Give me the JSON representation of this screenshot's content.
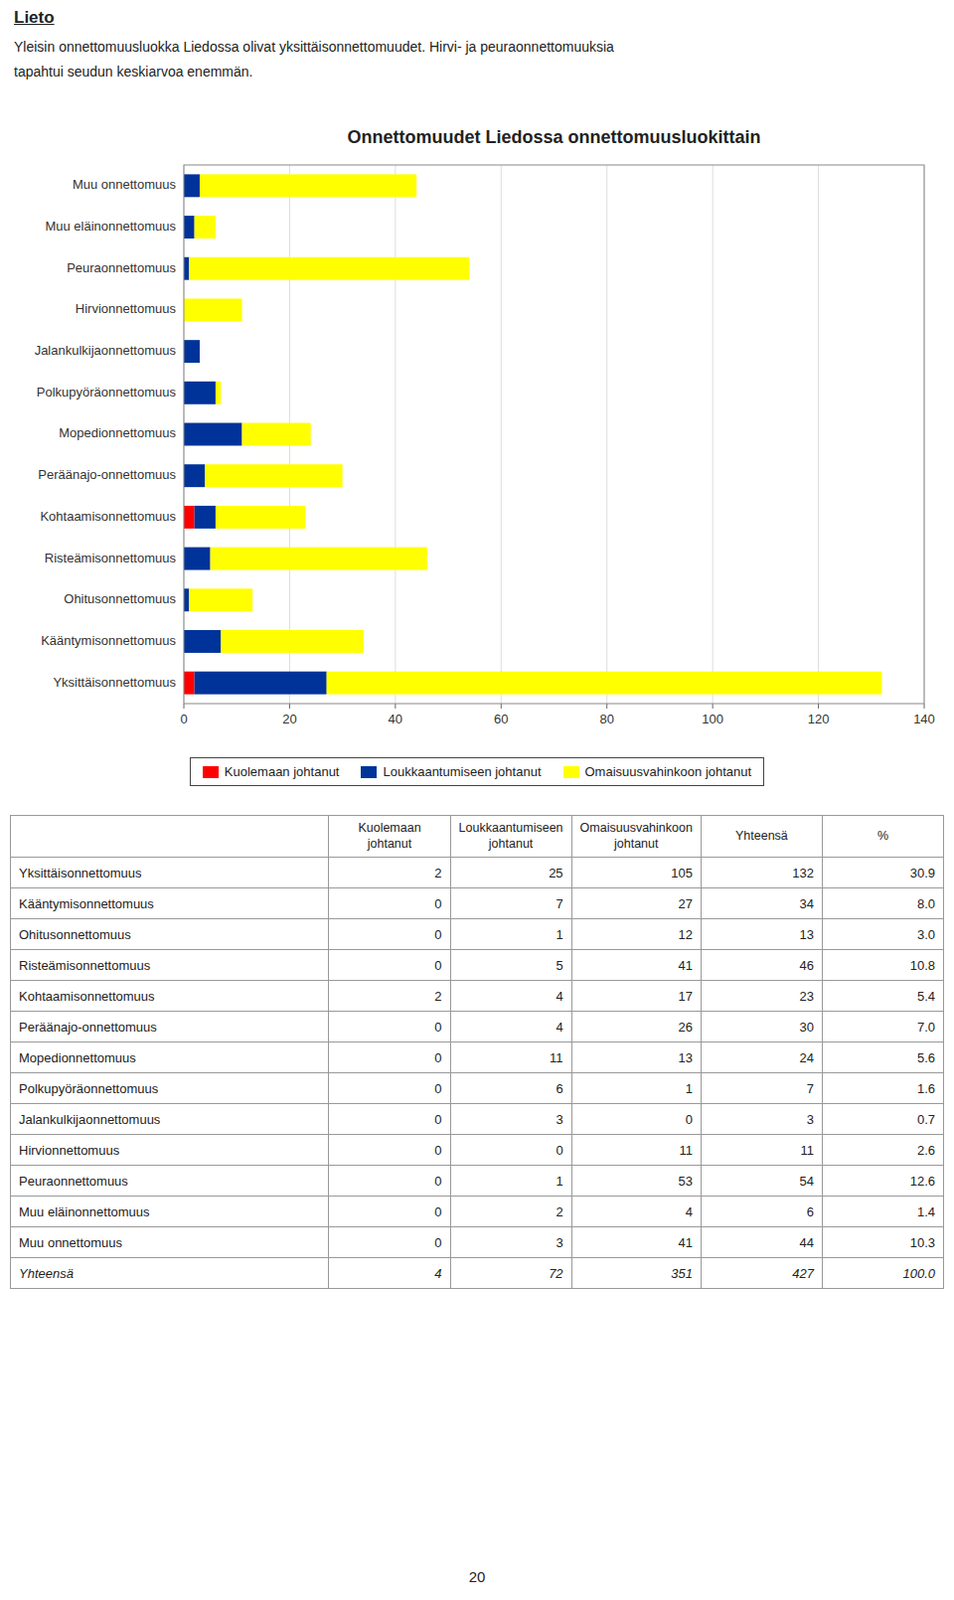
{
  "chart_data": {
    "type": "bar",
    "orientation": "horizontal",
    "stacked": true,
    "title": "Onnettomuudet Liedossa onnettomuusluokittain",
    "categories": [
      "Yksittäisonnettomuus",
      "Kääntymisonnettomuus",
      "Ohitusonnettomuus",
      "Risteämisonnettomuus",
      "Kohtaamisonnettomuus",
      "Peräänajo-onnettomuus",
      "Mopedionnettomuus",
      "Polkupyöräonnettomuus",
      "Jalankulkijaonnettomuus",
      "Hirvionnettomuus",
      "Peuraonnettomuus",
      "Muu eläinonnettomuus",
      "Muu onnettomuus"
    ],
    "series": [
      {
        "name": "Kuolemaan johtanut",
        "color": "#FF0000",
        "values": [
          2,
          0,
          0,
          0,
          2,
          0,
          0,
          0,
          0,
          0,
          0,
          0,
          0
        ]
      },
      {
        "name": "Loukkaantumiseen johtanut",
        "color": "#003399",
        "values": [
          25,
          7,
          1,
          5,
          4,
          4,
          11,
          6,
          3,
          0,
          1,
          2,
          3
        ]
      },
      {
        "name": "Omaisuusvahinkoon johtanut",
        "color": "#FFFF00",
        "values": [
          105,
          27,
          12,
          41,
          17,
          26,
          13,
          1,
          0,
          11,
          53,
          4,
          41
        ]
      }
    ],
    "xlim": [
      0,
      140
    ],
    "xticks": [
      0,
      20,
      40,
      60,
      80,
      100,
      120,
      140
    ],
    "grid": true,
    "legend": "bottom"
  },
  "page": {
    "heading": "Lieto",
    "paragraphs": [
      "Yleisin onnettomuusluokka Liedossa olivat yksittäisonnettomuudet. Hirvi- ja peuraonnettomuuksia",
      "tapahtui seudun keskiarvoa enemmän."
    ],
    "table": {
      "columns": [
        "Kuolemaan\njohtanut",
        "Loukkaantumiseen\njohtanut",
        "Omaisuusvahinkoon\njohtanut",
        "Yhteensä",
        "%"
      ],
      "rows": [
        [
          "Yksittäisonnettomuus",
          "2",
          "25",
          "105",
          "132",
          "30.9"
        ],
        [
          "Kääntymisonnettomuus",
          "0",
          "7",
          "27",
          "34",
          "8.0"
        ],
        [
          "Ohitusonnettomuus",
          "0",
          "1",
          "12",
          "13",
          "3.0"
        ],
        [
          "Risteämisonnettomuus",
          "0",
          "5",
          "41",
          "46",
          "10.8"
        ],
        [
          "Kohtaamisonnettomuus",
          "2",
          "4",
          "17",
          "23",
          "5.4"
        ],
        [
          "Peräänajo-onnettomuus",
          "0",
          "4",
          "26",
          "30",
          "7.0"
        ],
        [
          "Mopedionnettomuus",
          "0",
          "11",
          "13",
          "24",
          "5.6"
        ],
        [
          "Polkupyöräonnettomuus",
          "0",
          "6",
          "1",
          "7",
          "1.6"
        ],
        [
          "Jalankulkijaonnettomuus",
          "0",
          "3",
          "0",
          "3",
          "0.7"
        ],
        [
          "Hirvionnettomuus",
          "0",
          "0",
          "11",
          "11",
          "2.6"
        ],
        [
          "Peuraonnettomuus",
          "0",
          "1",
          "53",
          "54",
          "12.6"
        ],
        [
          "Muu eläinonnettomuus",
          "0",
          "2",
          "4",
          "6",
          "1.4"
        ],
        [
          "Muu onnettomuus",
          "0",
          "3",
          "41",
          "44",
          "10.3"
        ],
        [
          "Yhteensä",
          "4",
          "72",
          "351",
          "427",
          "100.0"
        ]
      ]
    },
    "page_number": "20"
  }
}
